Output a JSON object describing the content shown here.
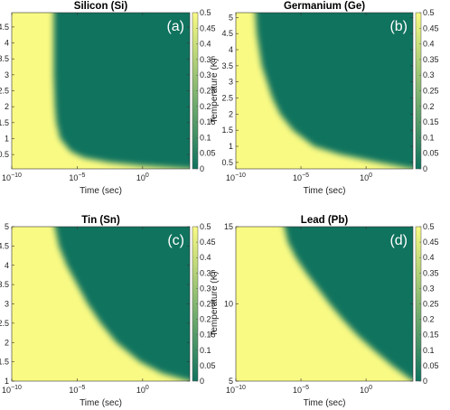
{
  "chart_data": [
    {
      "type": "heatmap",
      "title": "Silicon (Si)",
      "panel_label": "(a)",
      "xlabel": "Time (sec)",
      "ylabel": "Temperature (K)",
      "x_scale": "log",
      "x_ticks": [
        {
          "exp": -10
        },
        {
          "exp": -5
        },
        {
          "exp": 0
        }
      ],
      "xlim_log10": [
        -10,
        3.6
      ],
      "ylim": [
        0.05,
        4.95
      ],
      "y_ticks": [
        "0.5",
        "1",
        "1.5",
        "2",
        "2.5",
        "3",
        "3.5",
        "4",
        "4.5"
      ],
      "colorbar": {
        "min": 0,
        "max": 0.5,
        "ticks": [
          "0",
          "0.05",
          "0.1",
          "0.15",
          "0.2",
          "0.25",
          "0.3",
          "0.35",
          "0.4",
          "0.45",
          "0.5"
        ]
      },
      "colors": {
        "low": "#0f735e",
        "high": "#f9fa83"
      },
      "boundary": [
        {
          "T": 4.95,
          "log10t": -6.8
        },
        {
          "T": 3.0,
          "log10t": -6.8
        },
        {
          "T": 2.0,
          "log10t": -6.7
        },
        {
          "T": 1.5,
          "log10t": -6.6
        },
        {
          "T": 1.0,
          "log10t": -6.3
        },
        {
          "T": 0.6,
          "log10t": -5.5
        },
        {
          "T": 0.4,
          "log10t": -4.5
        },
        {
          "T": 0.25,
          "log10t": -2.5
        },
        {
          "T": 0.15,
          "log10t": 0.0
        },
        {
          "T": 0.05,
          "log10t": 3.6
        }
      ]
    },
    {
      "type": "heatmap",
      "title": "Germanium (Ge)",
      "panel_label": "(b)",
      "xlabel": "Time (sec)",
      "ylabel": "Temperature (K)",
      "x_scale": "log",
      "x_ticks": [
        {
          "exp": -10
        },
        {
          "exp": -5
        },
        {
          "exp": 0
        }
      ],
      "xlim_log10": [
        -10,
        3.6
      ],
      "ylim": [
        0.3,
        5.15
      ],
      "y_ticks": [
        "0.5",
        "1",
        "1.5",
        "2",
        "2.5",
        "3",
        "3.5",
        "4",
        "4.5",
        "5"
      ],
      "colorbar": {
        "min": 0,
        "max": 0.5,
        "ticks": [
          "0",
          "0.05",
          "0.1",
          "0.15",
          "0.2",
          "0.25",
          "0.3",
          "0.35",
          "0.4",
          "0.45",
          "0.5"
        ]
      },
      "colors": {
        "low": "#0f735e",
        "high": "#f9fa83"
      },
      "boundary": [
        {
          "T": 5.15,
          "log10t": -8.6
        },
        {
          "T": 4.5,
          "log10t": -8.4
        },
        {
          "T": 3.5,
          "log10t": -8.0
        },
        {
          "T": 2.5,
          "log10t": -7.2
        },
        {
          "T": 2.0,
          "log10t": -6.6
        },
        {
          "T": 1.5,
          "log10t": -5.6
        },
        {
          "T": 1.0,
          "log10t": -4.0
        },
        {
          "T": 0.75,
          "log10t": -2.0
        },
        {
          "T": 0.5,
          "log10t": 1.0
        },
        {
          "T": 0.3,
          "log10t": 3.6
        }
      ]
    },
    {
      "type": "heatmap",
      "title": "Tin (Sn)",
      "panel_label": "(c)",
      "xlabel": "Time (sec)",
      "ylabel": "Temperature (K)",
      "x_scale": "log",
      "x_ticks": [
        {
          "exp": -10
        },
        {
          "exp": -5
        },
        {
          "exp": 0
        }
      ],
      "xlim_log10": [
        -10,
        3.6
      ],
      "ylim": [
        1,
        5
      ],
      "y_ticks": [
        "1",
        "1.5",
        "2",
        "2.5",
        "3",
        "3.5",
        "4",
        "4.5",
        "5"
      ],
      "colorbar": {
        "min": 0,
        "max": 0.5,
        "ticks": [
          "0",
          "0.05",
          "0.1",
          "0.15",
          "0.2",
          "0.25",
          "0.3",
          "0.35",
          "0.4",
          "0.45",
          "0.5"
        ]
      },
      "colors": {
        "low": "#0f735e",
        "high": "#f9fa83"
      },
      "boundary": [
        {
          "T": 5.0,
          "log10t": -7.0
        },
        {
          "T": 4.5,
          "log10t": -6.4
        },
        {
          "T": 4.0,
          "log10t": -5.8
        },
        {
          "T": 3.5,
          "log10t": -5.0
        },
        {
          "T": 3.0,
          "log10t": -4.2
        },
        {
          "T": 2.5,
          "log10t": -3.2
        },
        {
          "T": 2.0,
          "log10t": -2.0
        },
        {
          "T": 1.5,
          "log10t": -0.2
        },
        {
          "T": 1.2,
          "log10t": 1.5
        },
        {
          "T": 1.0,
          "log10t": 3.6
        }
      ]
    },
    {
      "type": "heatmap",
      "title": "Lead (Pb)",
      "panel_label": "(d)",
      "xlabel": "Time (sec)",
      "ylabel": "Temperature (K)",
      "x_scale": "log",
      "x_ticks": [
        {
          "exp": -10
        },
        {
          "exp": -5
        },
        {
          "exp": 0
        }
      ],
      "xlim_log10": [
        -10,
        3.6
      ],
      "ylim": [
        5,
        15
      ],
      "y_ticks": [
        "5",
        "10",
        "15"
      ],
      "colorbar": {
        "min": 0,
        "max": 0.5,
        "ticks": [
          "0",
          "0.05",
          "0.1",
          "0.15",
          "0.2",
          "0.25",
          "0.3",
          "0.35",
          "0.4",
          "0.45",
          "0.5"
        ]
      },
      "colors": {
        "low": "#0f735e",
        "high": "#f9fa83"
      },
      "boundary": [
        {
          "T": 15.0,
          "log10t": -6.6
        },
        {
          "T": 14.0,
          "log10t": -6.0
        },
        {
          "T": 13.0,
          "log10t": -5.4
        },
        {
          "T": 12.0,
          "log10t": -4.6
        },
        {
          "T": 11.0,
          "log10t": -3.7
        },
        {
          "T": 10.0,
          "log10t": -2.8
        },
        {
          "T": 9.0,
          "log10t": -1.8
        },
        {
          "T": 8.0,
          "log10t": -0.7
        },
        {
          "T": 7.0,
          "log10t": 0.6
        },
        {
          "T": 6.0,
          "log10t": 2.0
        },
        {
          "T": 5.0,
          "log10t": 3.6
        }
      ]
    }
  ]
}
